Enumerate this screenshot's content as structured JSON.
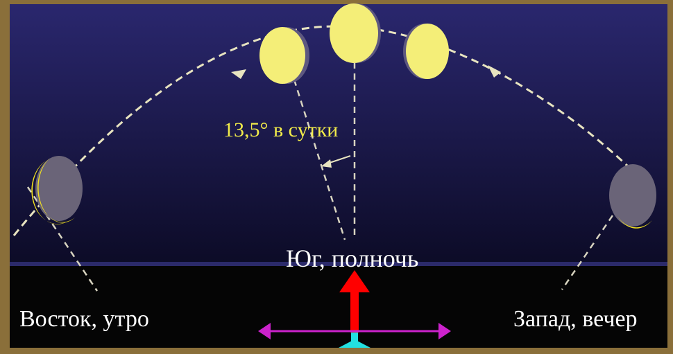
{
  "labels": {
    "south_midnight": "Юг, полночь",
    "east_morning": "Восток, утро",
    "west_evening": "Запад, вечер",
    "rate": "13,5° в сутки"
  },
  "colors": {
    "sky_top": "#2a276e",
    "sky_bottom": "#0c0b26",
    "ground": "#050505",
    "moon_full": "#f4ee78",
    "moon_dark": "#6a6478",
    "crescent": "#f0e020",
    "path": "#e8e4c0",
    "up_arrow": "#ff0000",
    "horizontal_arrow": "#cc22cc",
    "base_marker": "#22e0e0"
  }
}
